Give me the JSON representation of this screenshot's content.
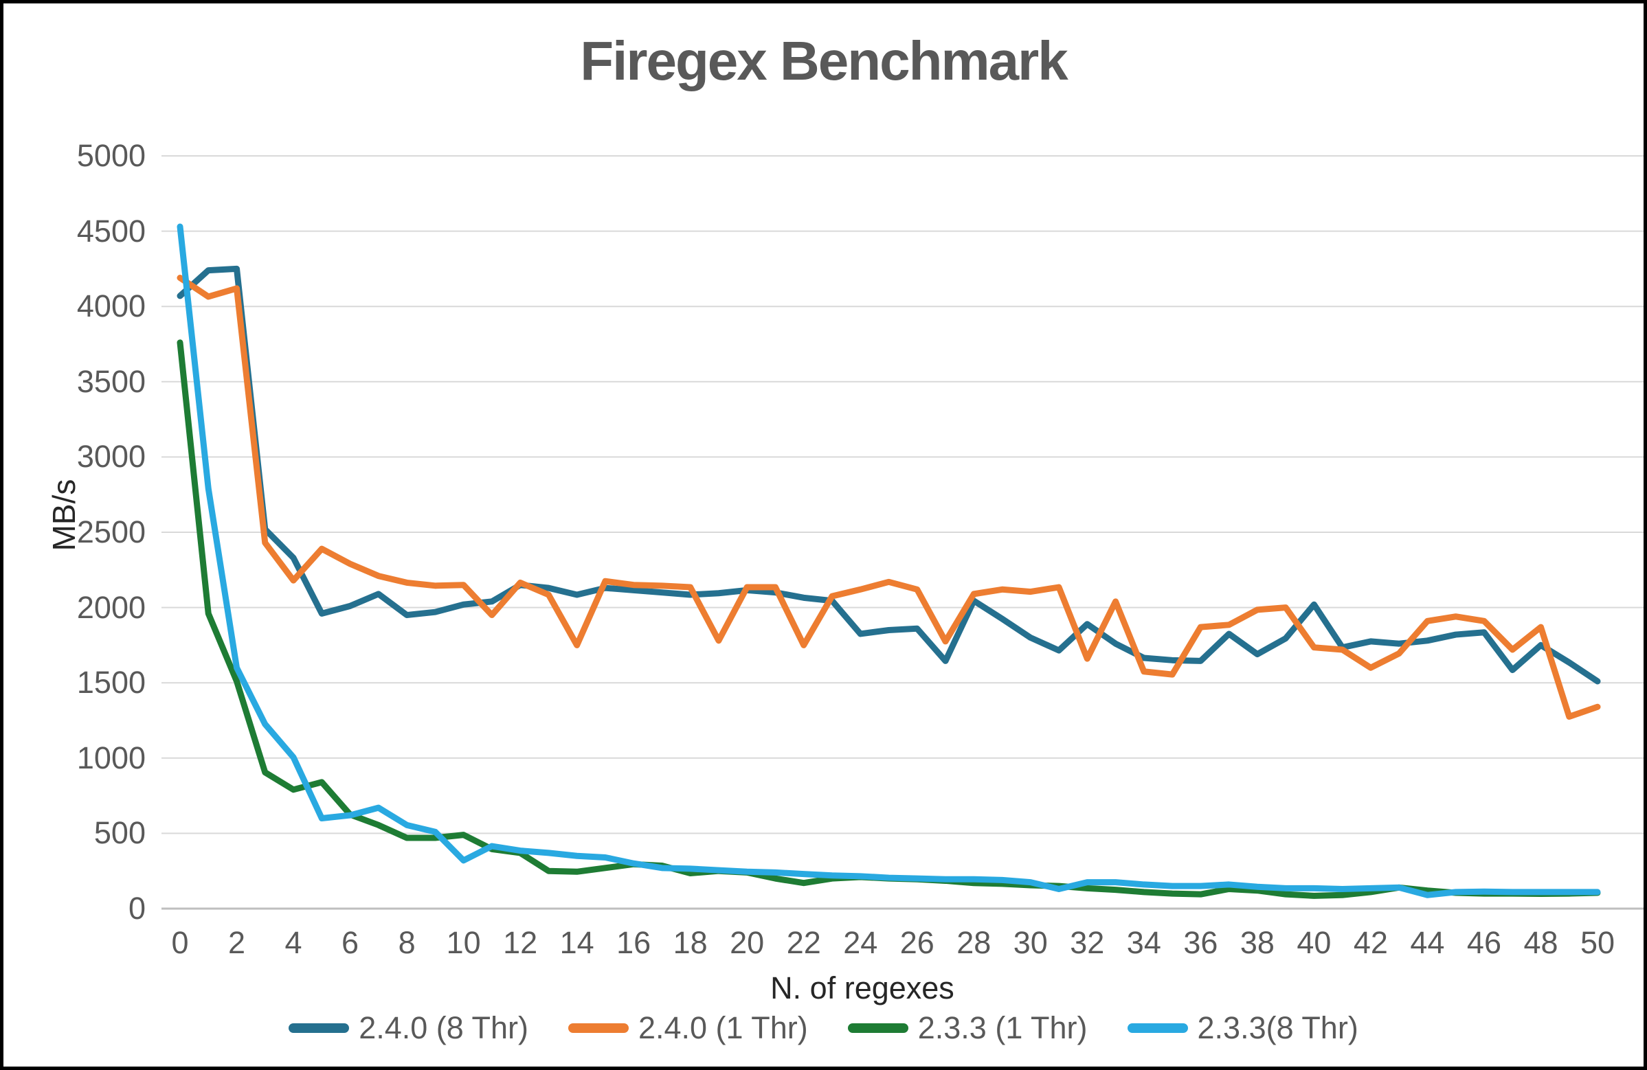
{
  "chart_data": {
    "type": "line",
    "title": "Firegex Benchmark",
    "xlabel": "N. of regexes",
    "ylabel": "MB/s",
    "xlim": [
      0,
      50
    ],
    "ylim": [
      0,
      5000
    ],
    "grid": "horizontal",
    "legend_position": "bottom",
    "x_ticks": [
      0,
      2,
      4,
      6,
      8,
      10,
      12,
      14,
      16,
      18,
      20,
      22,
      24,
      26,
      28,
      30,
      32,
      34,
      36,
      38,
      40,
      42,
      44,
      46,
      48,
      50
    ],
    "y_ticks": [
      0,
      500,
      1000,
      1500,
      2000,
      2500,
      3000,
      3500,
      4000,
      4500,
      5000
    ],
    "x": [
      0,
      1,
      2,
      3,
      4,
      5,
      6,
      7,
      8,
      9,
      10,
      11,
      12,
      13,
      14,
      15,
      16,
      17,
      18,
      19,
      20,
      21,
      22,
      23,
      24,
      25,
      26,
      27,
      28,
      29,
      30,
      31,
      32,
      33,
      34,
      35,
      36,
      37,
      38,
      39,
      40,
      41,
      42,
      43,
      44,
      45,
      46,
      47,
      48,
      49,
      50
    ],
    "series": [
      {
        "name": "2.4.0 (8 Thr)",
        "color": "#25708F",
        "values": [
          4070,
          4240,
          4250,
          2520,
          2330,
          1960,
          2010,
          2090,
          1950,
          1970,
          2020,
          2040,
          2150,
          2130,
          2085,
          2130,
          2115,
          2100,
          2085,
          2095,
          2115,
          2100,
          2065,
          2045,
          1825,
          1850,
          1860,
          1645,
          2045,
          1925,
          1800,
          1715,
          1890,
          1760,
          1665,
          1650,
          1645,
          1825,
          1690,
          1795,
          2020,
          1735,
          1775,
          1760,
          1780,
          1820,
          1835,
          1585,
          1750,
          1635,
          1510
        ]
      },
      {
        "name": "2.4.0 (1 Thr)",
        "color": "#ED7D31",
        "values": [
          4190,
          4065,
          4120,
          2430,
          2180,
          2390,
          2290,
          2210,
          2165,
          2145,
          2150,
          1950,
          2165,
          2085,
          1750,
          2175,
          2150,
          2145,
          2135,
          1780,
          2135,
          2135,
          1750,
          2075,
          2120,
          2170,
          2120,
          1775,
          2090,
          2120,
          2105,
          2135,
          1660,
          2040,
          1575,
          1555,
          1870,
          1885,
          1985,
          2000,
          1735,
          1720,
          1600,
          1695,
          1910,
          1940,
          1910,
          1720,
          1870,
          1275,
          1340
        ]
      },
      {
        "name": "2.3.3 (1 Thr)",
        "color": "#1E7C34",
        "values": [
          3760,
          1960,
          1510,
          905,
          790,
          840,
          625,
          555,
          470,
          470,
          490,
          395,
          370,
          250,
          245,
          270,
          295,
          285,
          235,
          250,
          240,
          200,
          170,
          200,
          210,
          200,
          195,
          185,
          170,
          165,
          155,
          150,
          135,
          125,
          110,
          100,
          95,
          130,
          120,
          95,
          85,
          90,
          110,
          140,
          120,
          105,
          100,
          100,
          98,
          100,
          105
        ]
      },
      {
        "name": "2.3.3(8 Thr)",
        "color": "#29A9E1",
        "values": [
          4530,
          2790,
          1600,
          1225,
          1005,
          600,
          620,
          670,
          555,
          510,
          320,
          415,
          385,
          370,
          350,
          340,
          300,
          270,
          265,
          255,
          245,
          240,
          230,
          220,
          215,
          205,
          200,
          195,
          195,
          190,
          175,
          130,
          175,
          175,
          160,
          150,
          150,
          160,
          145,
          135,
          135,
          130,
          135,
          140,
          90,
          110,
          113,
          110,
          110,
          110,
          110
        ]
      }
    ]
  }
}
